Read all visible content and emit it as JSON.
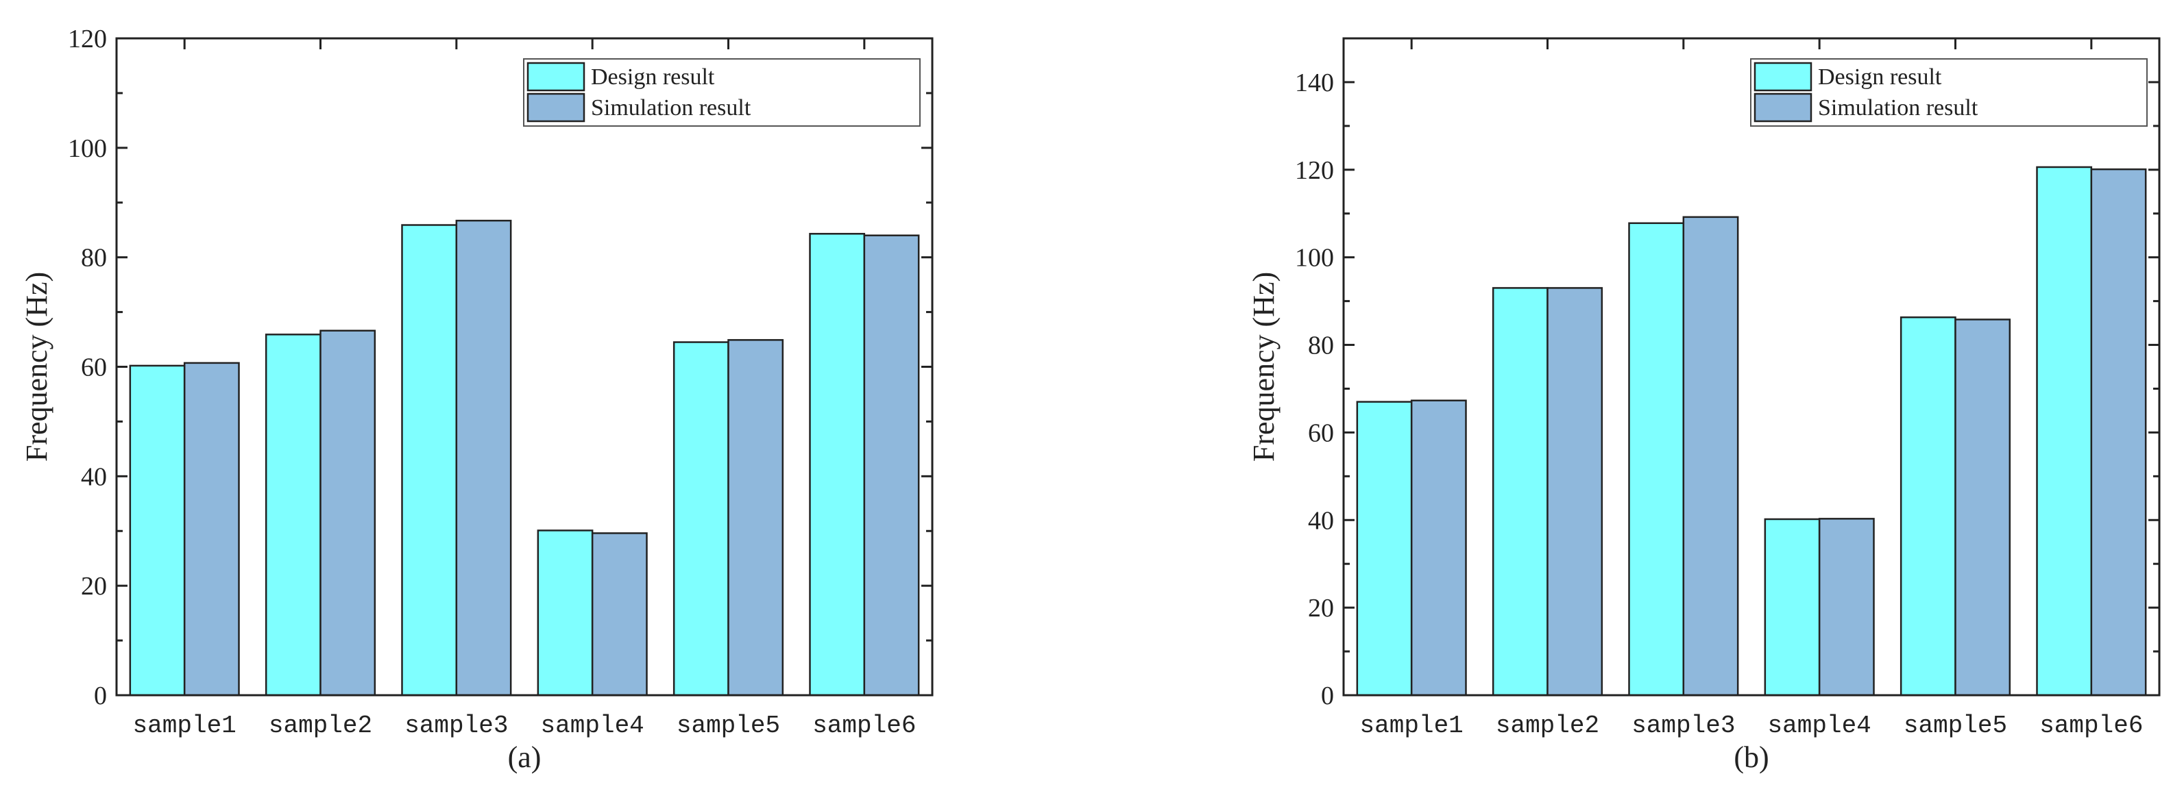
{
  "colors": {
    "design": "#7fffff",
    "simulation": "#8fb8dc",
    "axis": "#222222"
  },
  "chart_data": [
    {
      "type": "bar",
      "panel_label": "(a)",
      "xlabel": "",
      "ylabel": "Frequency (Hz)",
      "categories": [
        "sample1",
        "sample2",
        "sample3",
        "sample4",
        "sample5",
        "sample6"
      ],
      "ylim": [
        0,
        120
      ],
      "yticks": [
        0,
        20,
        40,
        60,
        80,
        100,
        120
      ],
      "legend_position": "top-right",
      "series": [
        {
          "name": "Design result",
          "values": [
            60.2,
            65.9,
            85.9,
            30.1,
            64.5,
            84.3
          ]
        },
        {
          "name": "Simulation result",
          "values": [
            60.7,
            66.6,
            86.7,
            29.6,
            64.9,
            84.0
          ]
        }
      ]
    },
    {
      "type": "bar",
      "panel_label": "(b)",
      "xlabel": "",
      "ylabel": "Frequency (Hz)",
      "categories": [
        "sample1",
        "sample2",
        "sample3",
        "sample4",
        "sample5",
        "sample6"
      ],
      "ylim": [
        0,
        150
      ],
      "yticks": [
        0,
        20,
        40,
        60,
        80,
        100,
        120,
        140
      ],
      "legend_position": "top-right",
      "series": [
        {
          "name": "Design result",
          "values": [
            67.0,
            93.0,
            107.8,
            40.2,
            86.3,
            120.6
          ]
        },
        {
          "name": "Simulation result",
          "values": [
            67.3,
            93.0,
            109.2,
            40.3,
            85.8,
            120.1
          ]
        }
      ]
    }
  ]
}
